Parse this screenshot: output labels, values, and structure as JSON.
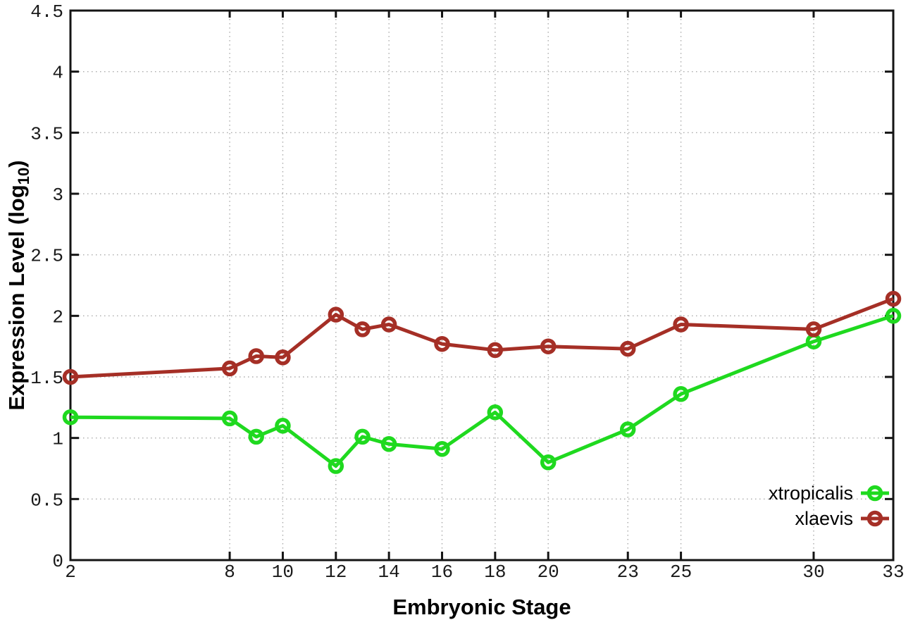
{
  "chart_data": {
    "type": "line",
    "title": "",
    "xlabel": "Embryonic Stage",
    "ylabel": "Expression Level (log10)",
    "ylabel_prefix": "Expression Level (log",
    "ylabel_sub": "10",
    "ylabel_suffix": ")",
    "xlim": [
      2,
      33
    ],
    "ylim": [
      0,
      4.5
    ],
    "x_ticks": [
      2,
      8,
      10,
      12,
      14,
      16,
      18,
      20,
      23,
      25,
      30,
      33
    ],
    "y_ticks": [
      0,
      0.5,
      1,
      1.5,
      2,
      2.5,
      3,
      3.5,
      4,
      4.5
    ],
    "grid": true,
    "legend_position": "bottom-right",
    "marker": "open-circle",
    "x": [
      2,
      8,
      9,
      10,
      12,
      13,
      14,
      16,
      18,
      20,
      23,
      25,
      30,
      33
    ],
    "series": [
      {
        "name": "xtropicalis",
        "color": "#1FD91F",
        "values": [
          1.17,
          1.16,
          1.01,
          1.1,
          0.77,
          1.01,
          0.95,
          0.91,
          1.21,
          0.8,
          1.07,
          1.36,
          1.79,
          2.0
        ]
      },
      {
        "name": "xlaevis",
        "color": "#A52F26",
        "values": [
          1.5,
          1.57,
          1.67,
          1.66,
          2.01,
          1.89,
          1.93,
          1.77,
          1.72,
          1.75,
          1.73,
          1.93,
          1.89,
          2.14
        ]
      }
    ],
    "colors": {
      "border": "#141414",
      "grid": "#ababab",
      "background": "#ffffff"
    }
  }
}
